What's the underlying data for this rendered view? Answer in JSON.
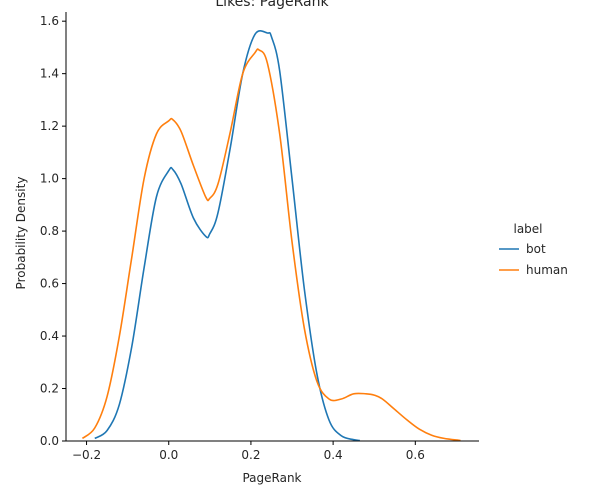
{
  "chart_data": {
    "type": "line",
    "title": "Likes: PageRank",
    "xlabel": "PageRank",
    "ylabel": "Probability Density",
    "xlim": [
      -0.25,
      0.755
    ],
    "ylim": [
      0,
      1.635
    ],
    "xticks": [
      -0.2,
      0.0,
      0.2,
      0.4,
      0.6
    ],
    "xtick_labels": [
      "−0.2",
      "0.0",
      "0.2",
      "0.4",
      "0.6"
    ],
    "yticks": [
      0.0,
      0.2,
      0.4,
      0.6,
      0.8,
      1.0,
      1.2,
      1.4,
      1.6
    ],
    "ytick_labels": [
      "0.0",
      "0.2",
      "0.4",
      "0.6",
      "0.8",
      "1.0",
      "1.2",
      "1.4",
      "1.6"
    ],
    "grid": false,
    "legend": {
      "title": "label",
      "position": "right"
    },
    "series": [
      {
        "name": "bot",
        "color": "#1f77b4",
        "x": [
          -0.18,
          -0.15,
          -0.12,
          -0.09,
          -0.06,
          -0.03,
          0.0,
          0.01,
          0.03,
          0.06,
          0.09,
          0.1,
          0.12,
          0.15,
          0.18,
          0.21,
          0.24,
          0.25,
          0.27,
          0.3,
          0.33,
          0.36,
          0.39,
          0.42,
          0.45,
          0.465
        ],
        "y": [
          0.01,
          0.04,
          0.14,
          0.36,
          0.66,
          0.93,
          1.03,
          1.035,
          0.98,
          0.85,
          0.78,
          0.79,
          0.87,
          1.12,
          1.4,
          1.55,
          1.555,
          1.54,
          1.41,
          1.0,
          0.58,
          0.26,
          0.08,
          0.02,
          0.005,
          0.002
        ]
      },
      {
        "name": "human",
        "color": "#ff7f0e",
        "x": [
          -0.21,
          -0.18,
          -0.15,
          -0.12,
          -0.09,
          -0.06,
          -0.03,
          0.0,
          0.01,
          0.03,
          0.06,
          0.09,
          0.1,
          0.12,
          0.15,
          0.18,
          0.21,
          0.22,
          0.24,
          0.27,
          0.3,
          0.33,
          0.36,
          0.39,
          0.42,
          0.45,
          0.48,
          0.5,
          0.52,
          0.55,
          0.58,
          0.61,
          0.64,
          0.67,
          0.71
        ],
        "y": [
          0.01,
          0.05,
          0.17,
          0.4,
          0.7,
          1.0,
          1.17,
          1.22,
          1.225,
          1.18,
          1.05,
          0.93,
          0.925,
          0.98,
          1.18,
          1.4,
          1.48,
          1.49,
          1.44,
          1.17,
          0.76,
          0.43,
          0.23,
          0.16,
          0.16,
          0.18,
          0.18,
          0.175,
          0.16,
          0.12,
          0.08,
          0.045,
          0.022,
          0.01,
          0.002
        ]
      }
    ]
  }
}
